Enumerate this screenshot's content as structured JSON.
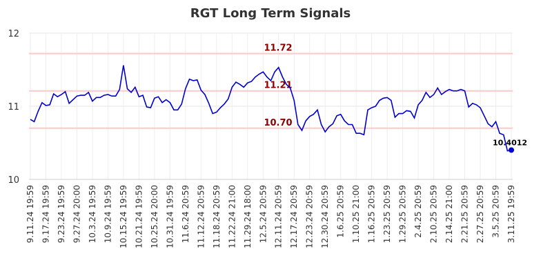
{
  "chart_data": {
    "type": "line",
    "title": "RGT Long Term Signals",
    "categories": [
      "9.11.24 19:59",
      null,
      null,
      null,
      "9.17.24 19:59",
      null,
      null,
      null,
      "9.23.24 19:59",
      null,
      null,
      null,
      "9.27.24 20:00",
      null,
      null,
      null,
      "10.3.24 19:59",
      null,
      null,
      null,
      "10.9.24 19:59",
      null,
      null,
      null,
      "10.15.24 19:59",
      null,
      null,
      null,
      "10.21.24 19:59",
      null,
      null,
      null,
      "10.25.24 20:00",
      null,
      null,
      null,
      "10.31.24 19:59",
      null,
      null,
      null,
      "11.6.24 20:59",
      null,
      null,
      null,
      "11.12.24 20:59",
      null,
      null,
      null,
      "11.18.24 20:59",
      null,
      null,
      null,
      "11.22.24 21:00",
      null,
      null,
      null,
      "11.29.24 18:00",
      null,
      null,
      null,
      "12.5.24 20:59",
      null,
      null,
      null,
      "12.11.24 20:59",
      null,
      null,
      null,
      "12.17.24 20:59",
      null,
      null,
      null,
      "12.23.24 20:59",
      null,
      null,
      null,
      "12.30.24 20:59",
      null,
      null,
      null,
      "1.6.25 20:59",
      null,
      null,
      null,
      "1.10.25 21:00",
      null,
      null,
      null,
      "1.16.25 20:59",
      null,
      null,
      null,
      "1.23.25 20:59",
      null,
      null,
      null,
      "1.29.25 20:59",
      null,
      null,
      null,
      "2.4.25 20:59",
      null,
      null,
      null,
      "2.10.25 20:59",
      null,
      null,
      null,
      "2.14.25 21:00",
      null,
      null,
      null,
      "2.21.25 20:59",
      null,
      null,
      null,
      "2.27.25 20:59",
      null,
      null,
      null,
      "3.5.25 20:59",
      null,
      null,
      null,
      "3.11.25 19:59"
    ],
    "values": [
      10.82,
      10.79,
      10.93,
      11.05,
      11.01,
      11.02,
      11.17,
      11.13,
      11.16,
      11.2,
      11.04,
      11.09,
      11.14,
      11.15,
      11.15,
      11.19,
      11.07,
      11.12,
      11.12,
      11.15,
      11.16,
      11.14,
      11.14,
      11.23,
      11.56,
      11.24,
      11.19,
      11.26,
      11.13,
      11.15,
      10.99,
      10.98,
      11.11,
      11.13,
      11.05,
      11.09,
      11.05,
      10.95,
      10.95,
      11.03,
      11.24,
      11.37,
      11.35,
      11.36,
      11.22,
      11.16,
      11.04,
      10.9,
      10.92,
      10.98,
      11.03,
      11.1,
      11.26,
      11.33,
      11.3,
      11.26,
      11.32,
      11.34,
      11.4,
      11.44,
      11.47,
      11.4,
      11.35,
      11.47,
      11.53,
      11.4,
      11.3,
      11.25,
      11.08,
      10.75,
      10.67,
      10.8,
      10.86,
      10.89,
      10.95,
      10.75,
      10.65,
      10.72,
      10.76,
      10.87,
      10.89,
      10.8,
      10.75,
      10.75,
      10.63,
      10.63,
      10.61,
      10.95,
      10.98,
      11.0,
      11.08,
      11.11,
      11.12,
      11.08,
      10.85,
      10.9,
      10.9,
      10.94,
      10.93,
      10.84,
      11.02,
      11.08,
      11.19,
      11.12,
      11.16,
      11.25,
      11.16,
      11.2,
      11.23,
      11.21,
      11.21,
      11.23,
      11.21,
      10.99,
      11.04,
      11.02,
      10.98,
      10.87,
      10.76,
      10.72,
      10.79,
      10.63,
      10.61,
      10.39,
      10.4012
    ],
    "color": "#0000cc",
    "levels": {
      "values": [
        11.72,
        11.21,
        10.7
      ],
      "value_labels": [
        "11.72",
        "11.21",
        "10.70"
      ],
      "color": "#ffc8c8",
      "label_color": "#8b0000"
    },
    "ylim": [
      10,
      12
    ],
    "yticks": [
      10,
      11,
      12
    ],
    "grid": true
  }
}
